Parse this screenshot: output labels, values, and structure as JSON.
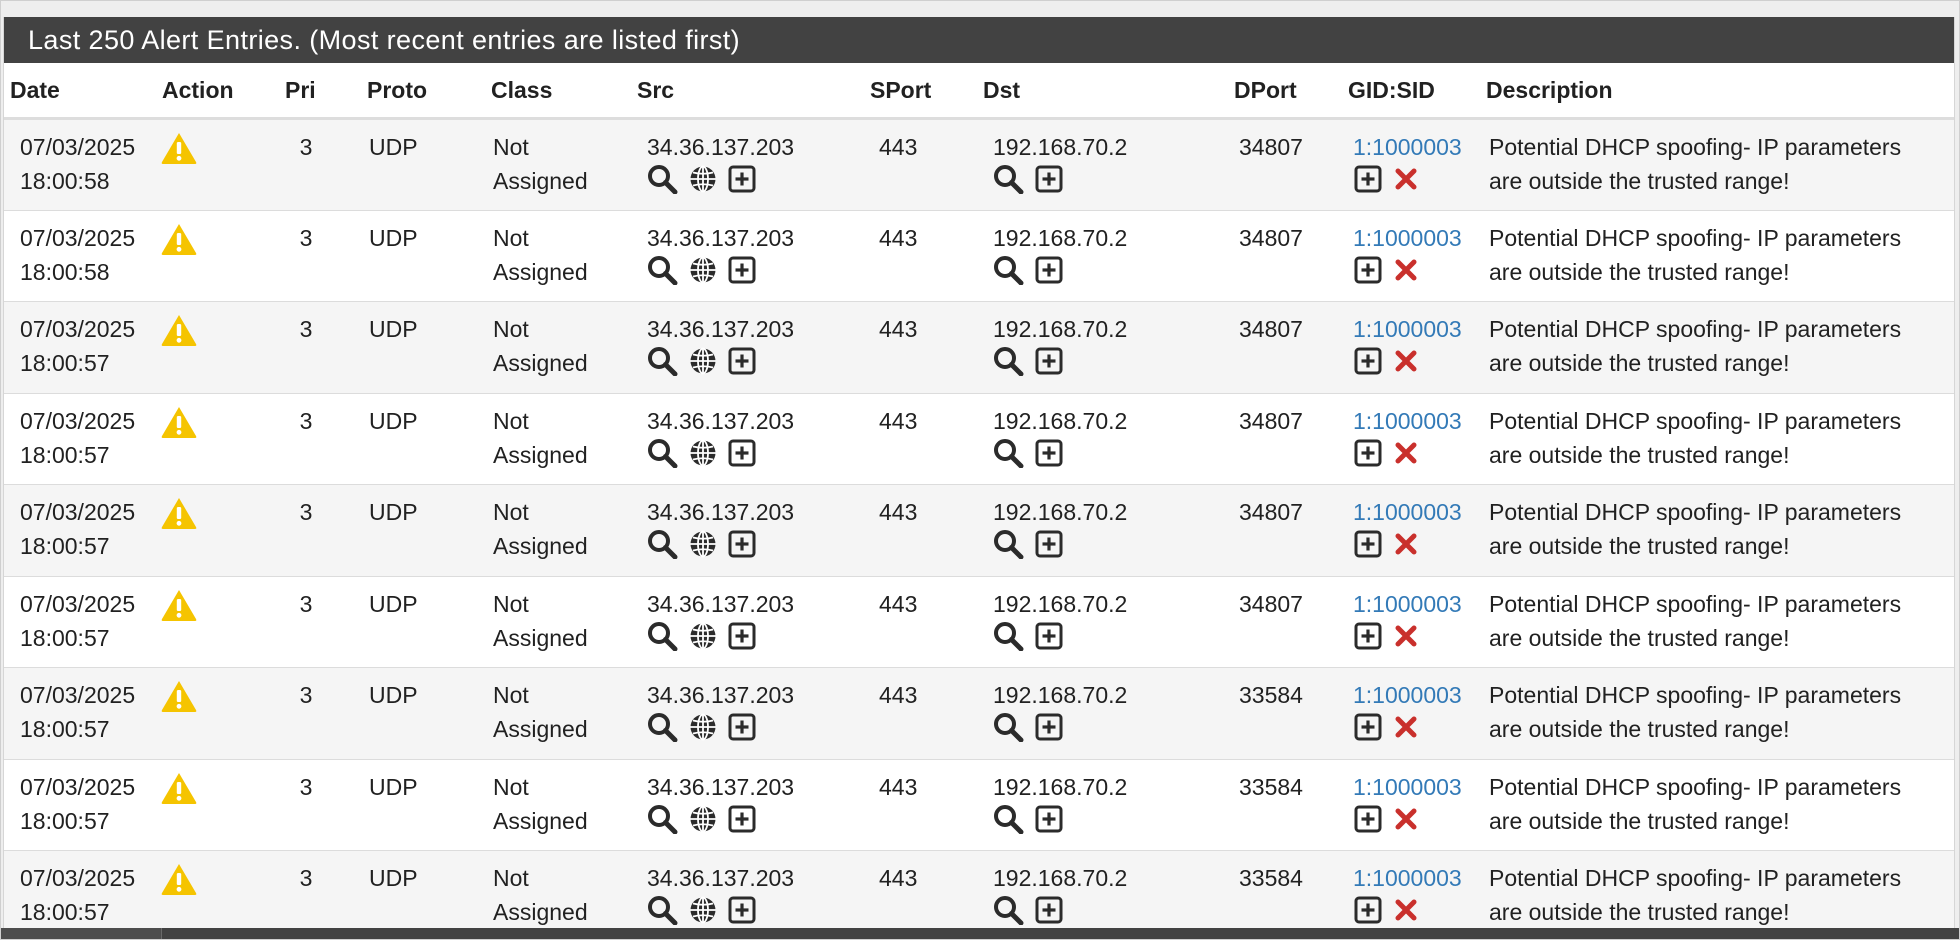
{
  "panel": {
    "title": "Last 250 Alert Entries. (Most recent entries are listed first)"
  },
  "columns": [
    "Date",
    "Action",
    "Pri",
    "Proto",
    "Class",
    "Src",
    "SPort",
    "Dst",
    "DPort",
    "GID:SID",
    "Description"
  ],
  "colors": {
    "heading_bg": "#424242",
    "warning_icon": "#f5c400",
    "sid_link": "#337ab7",
    "disable_icon": "#c9302c",
    "row_stripe": "#f5f5f5"
  },
  "icons": {
    "action": "warning-triangle-icon",
    "src": [
      "search-icon",
      "globe-icon",
      "plus-square-icon"
    ],
    "dst": [
      "search-icon",
      "plus-square-icon"
    ],
    "sid": [
      "plus-square-icon",
      "times-icon"
    ]
  },
  "rows": [
    {
      "date": "07/03/2025",
      "time": "18:00:58",
      "pri": "3",
      "proto": "UDP",
      "class_1": "Not",
      "class_2": "Assigned",
      "src": "34.36.137.203",
      "sport": "443",
      "dst": "192.168.70.2",
      "dport": "34807",
      "sid": "1:1000003",
      "desc_1": "Potential DHCP spoofing- IP parameters",
      "desc_2": "are outside the trusted range!"
    },
    {
      "date": "07/03/2025",
      "time": "18:00:58",
      "pri": "3",
      "proto": "UDP",
      "class_1": "Not",
      "class_2": "Assigned",
      "src": "34.36.137.203",
      "sport": "443",
      "dst": "192.168.70.2",
      "dport": "34807",
      "sid": "1:1000003",
      "desc_1": "Potential DHCP spoofing- IP parameters",
      "desc_2": "are outside the trusted range!"
    },
    {
      "date": "07/03/2025",
      "time": "18:00:57",
      "pri": "3",
      "proto": "UDP",
      "class_1": "Not",
      "class_2": "Assigned",
      "src": "34.36.137.203",
      "sport": "443",
      "dst": "192.168.70.2",
      "dport": "34807",
      "sid": "1:1000003",
      "desc_1": "Potential DHCP spoofing- IP parameters",
      "desc_2": "are outside the trusted range!"
    },
    {
      "date": "07/03/2025",
      "time": "18:00:57",
      "pri": "3",
      "proto": "UDP",
      "class_1": "Not",
      "class_2": "Assigned",
      "src": "34.36.137.203",
      "sport": "443",
      "dst": "192.168.70.2",
      "dport": "34807",
      "sid": "1:1000003",
      "desc_1": "Potential DHCP spoofing- IP parameters",
      "desc_2": "are outside the trusted range!"
    },
    {
      "date": "07/03/2025",
      "time": "18:00:57",
      "pri": "3",
      "proto": "UDP",
      "class_1": "Not",
      "class_2": "Assigned",
      "src": "34.36.137.203",
      "sport": "443",
      "dst": "192.168.70.2",
      "dport": "34807",
      "sid": "1:1000003",
      "desc_1": "Potential DHCP spoofing- IP parameters",
      "desc_2": "are outside the trusted range!"
    },
    {
      "date": "07/03/2025",
      "time": "18:00:57",
      "pri": "3",
      "proto": "UDP",
      "class_1": "Not",
      "class_2": "Assigned",
      "src": "34.36.137.203",
      "sport": "443",
      "dst": "192.168.70.2",
      "dport": "34807",
      "sid": "1:1000003",
      "desc_1": "Potential DHCP spoofing- IP parameters",
      "desc_2": "are outside the trusted range!"
    },
    {
      "date": "07/03/2025",
      "time": "18:00:57",
      "pri": "3",
      "proto": "UDP",
      "class_1": "Not",
      "class_2": "Assigned",
      "src": "34.36.137.203",
      "sport": "443",
      "dst": "192.168.70.2",
      "dport": "33584",
      "sid": "1:1000003",
      "desc_1": "Potential DHCP spoofing- IP parameters",
      "desc_2": "are outside the trusted range!"
    },
    {
      "date": "07/03/2025",
      "time": "18:00:57",
      "pri": "3",
      "proto": "UDP",
      "class_1": "Not",
      "class_2": "Assigned",
      "src": "34.36.137.203",
      "sport": "443",
      "dst": "192.168.70.2",
      "dport": "33584",
      "sid": "1:1000003",
      "desc_1": "Potential DHCP spoofing- IP parameters",
      "desc_2": "are outside the trusted range!"
    },
    {
      "date": "07/03/2025",
      "time": "18:00:57",
      "pri": "3",
      "proto": "UDP",
      "class_1": "Not",
      "class_2": "Assigned",
      "src": "34.36.137.203",
      "sport": "443",
      "dst": "192.168.70.2",
      "dport": "33584",
      "sid": "1:1000003",
      "desc_1": "Potential DHCP spoofing- IP parameters",
      "desc_2": "are outside the trusted range!"
    }
  ]
}
